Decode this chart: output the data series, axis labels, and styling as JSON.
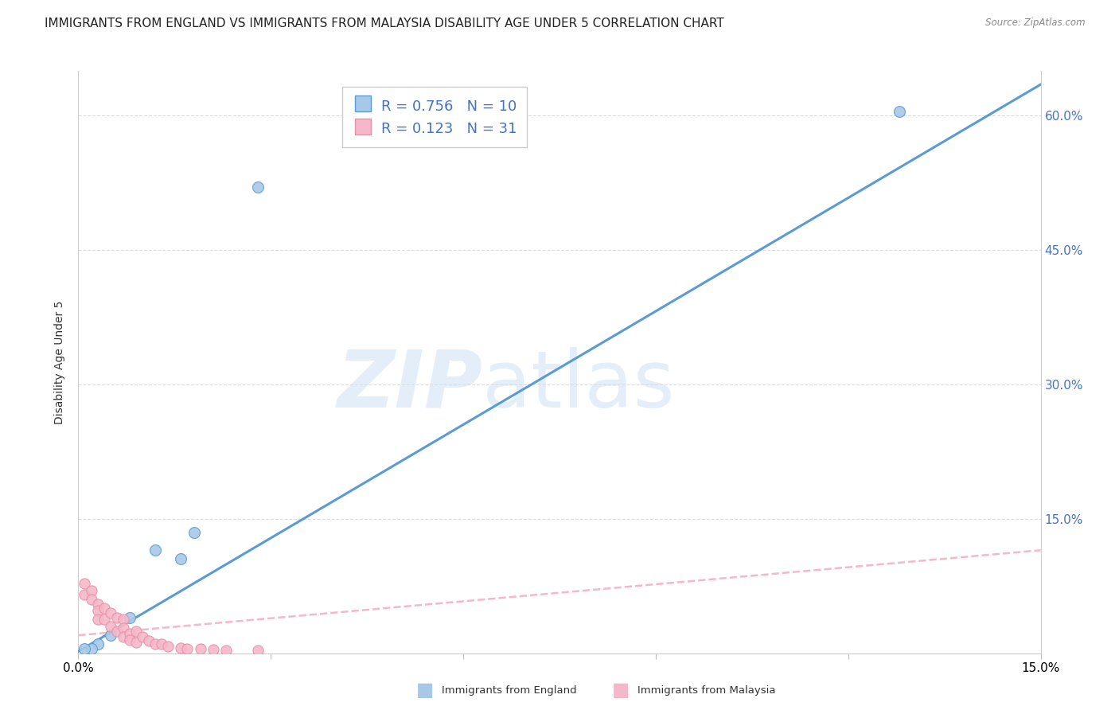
{
  "title": "IMMIGRANTS FROM ENGLAND VS IMMIGRANTS FROM MALAYSIA DISABILITY AGE UNDER 5 CORRELATION CHART",
  "source": "Source: ZipAtlas.com",
  "ylabel": "Disability Age Under 5",
  "xmin": 0.0,
  "xmax": 0.15,
  "ymin": 0.0,
  "ymax": 0.65,
  "right_yticks": [
    0.15,
    0.3,
    0.45,
    0.6
  ],
  "right_yticklabels": [
    "15.0%",
    "30.0%",
    "45.0%",
    "60.0%"
  ],
  "grid_yticks": [
    0.0,
    0.15,
    0.3,
    0.45,
    0.6
  ],
  "xticks": [
    0.0,
    0.03,
    0.06,
    0.09,
    0.12,
    0.15
  ],
  "xticklabels": [
    "0.0%",
    "",
    "",
    "",
    "",
    "15.0%"
  ],
  "england_color": "#A8C8E8",
  "malaysia_color": "#F5B8C8",
  "england_line_color": "#5B9BD5",
  "malaysia_line_color": "#F5B8C8",
  "england_R": 0.756,
  "england_N": 10,
  "malaysia_R": 0.123,
  "malaysia_N": 31,
  "england_scatter_x": [
    0.012,
    0.018,
    0.016,
    0.008,
    0.005,
    0.003,
    0.002,
    0.001,
    0.028,
    0.128
  ],
  "england_scatter_y": [
    0.115,
    0.135,
    0.105,
    0.04,
    0.02,
    0.01,
    0.005,
    0.005,
    0.52,
    0.605
  ],
  "malaysia_scatter_x": [
    0.001,
    0.001,
    0.002,
    0.002,
    0.003,
    0.003,
    0.003,
    0.004,
    0.004,
    0.005,
    0.005,
    0.006,
    0.006,
    0.007,
    0.007,
    0.007,
    0.008,
    0.008,
    0.009,
    0.009,
    0.01,
    0.011,
    0.012,
    0.013,
    0.014,
    0.016,
    0.017,
    0.019,
    0.021,
    0.023,
    0.028
  ],
  "malaysia_scatter_y": [
    0.078,
    0.065,
    0.07,
    0.06,
    0.055,
    0.048,
    0.038,
    0.05,
    0.038,
    0.045,
    0.03,
    0.04,
    0.025,
    0.038,
    0.028,
    0.018,
    0.022,
    0.015,
    0.025,
    0.012,
    0.018,
    0.014,
    0.01,
    0.01,
    0.008,
    0.006,
    0.005,
    0.005,
    0.004,
    0.003,
    0.003
  ],
  "england_trendline_x": [
    0.0,
    0.15
  ],
  "england_trendline_y": [
    0.002,
    0.635
  ],
  "malaysia_trendline_x": [
    0.0,
    0.15
  ],
  "malaysia_trendline_y": [
    0.02,
    0.115
  ],
  "watermark_line1": "ZIP",
  "watermark_line2": "atlas",
  "background_color": "#ffffff",
  "grid_color": "#dddddd",
  "title_fontsize": 11,
  "axis_label_fontsize": 10,
  "tick_fontsize": 10,
  "legend_fontsize": 13,
  "right_tick_color": "#4472C4",
  "legend_text_color": "#4472C4"
}
